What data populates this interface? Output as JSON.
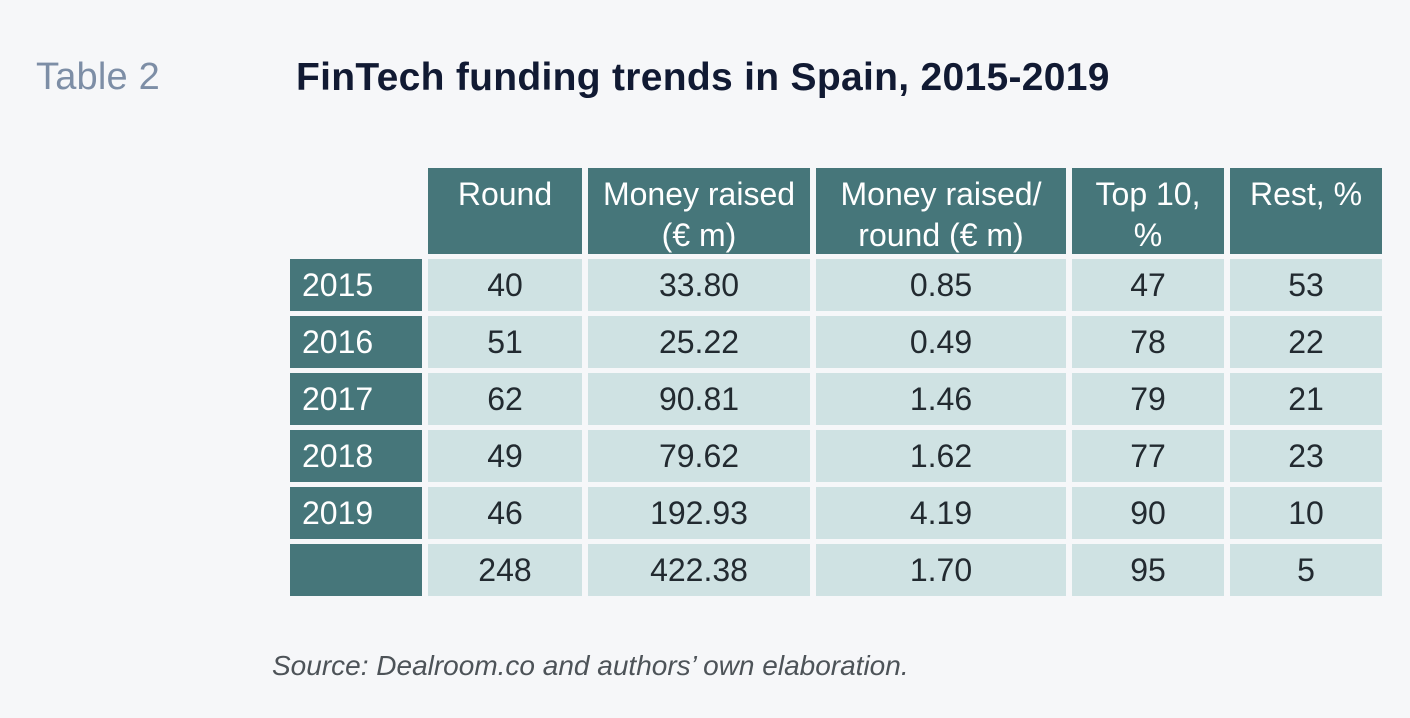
{
  "label": "Table 2",
  "title": "FinTech funding trends in Spain, 2015-2019",
  "columns": [
    "Round",
    "Money raised\n(€ m)",
    "Money raised/\nround (€ m)",
    "Top 10,\n%",
    "Rest, %"
  ],
  "rows": [
    {
      "year": "2015",
      "round": "40",
      "money": "33.80",
      "per_round": "0.85",
      "top10": "47",
      "rest": "53"
    },
    {
      "year": "2016",
      "round": "51",
      "money": "25.22",
      "per_round": "0.49",
      "top10": "78",
      "rest": "22"
    },
    {
      "year": "2017",
      "round": "62",
      "money": "90.81",
      "per_round": "1.46",
      "top10": "79",
      "rest": "21"
    },
    {
      "year": "2018",
      "round": "49",
      "money": "79.62",
      "per_round": "1.62",
      "top10": "77",
      "rest": "23"
    },
    {
      "year": "2019",
      "round": "46",
      "money": "192.93",
      "per_round": "4.19",
      "top10": "90",
      "rest": "10"
    },
    {
      "year": "",
      "round": "248",
      "money": "422.38",
      "per_round": "1.70",
      "top10": "95",
      "rest": "5"
    }
  ],
  "source": "Source: Dealroom.co and authors’ own elaboration."
}
